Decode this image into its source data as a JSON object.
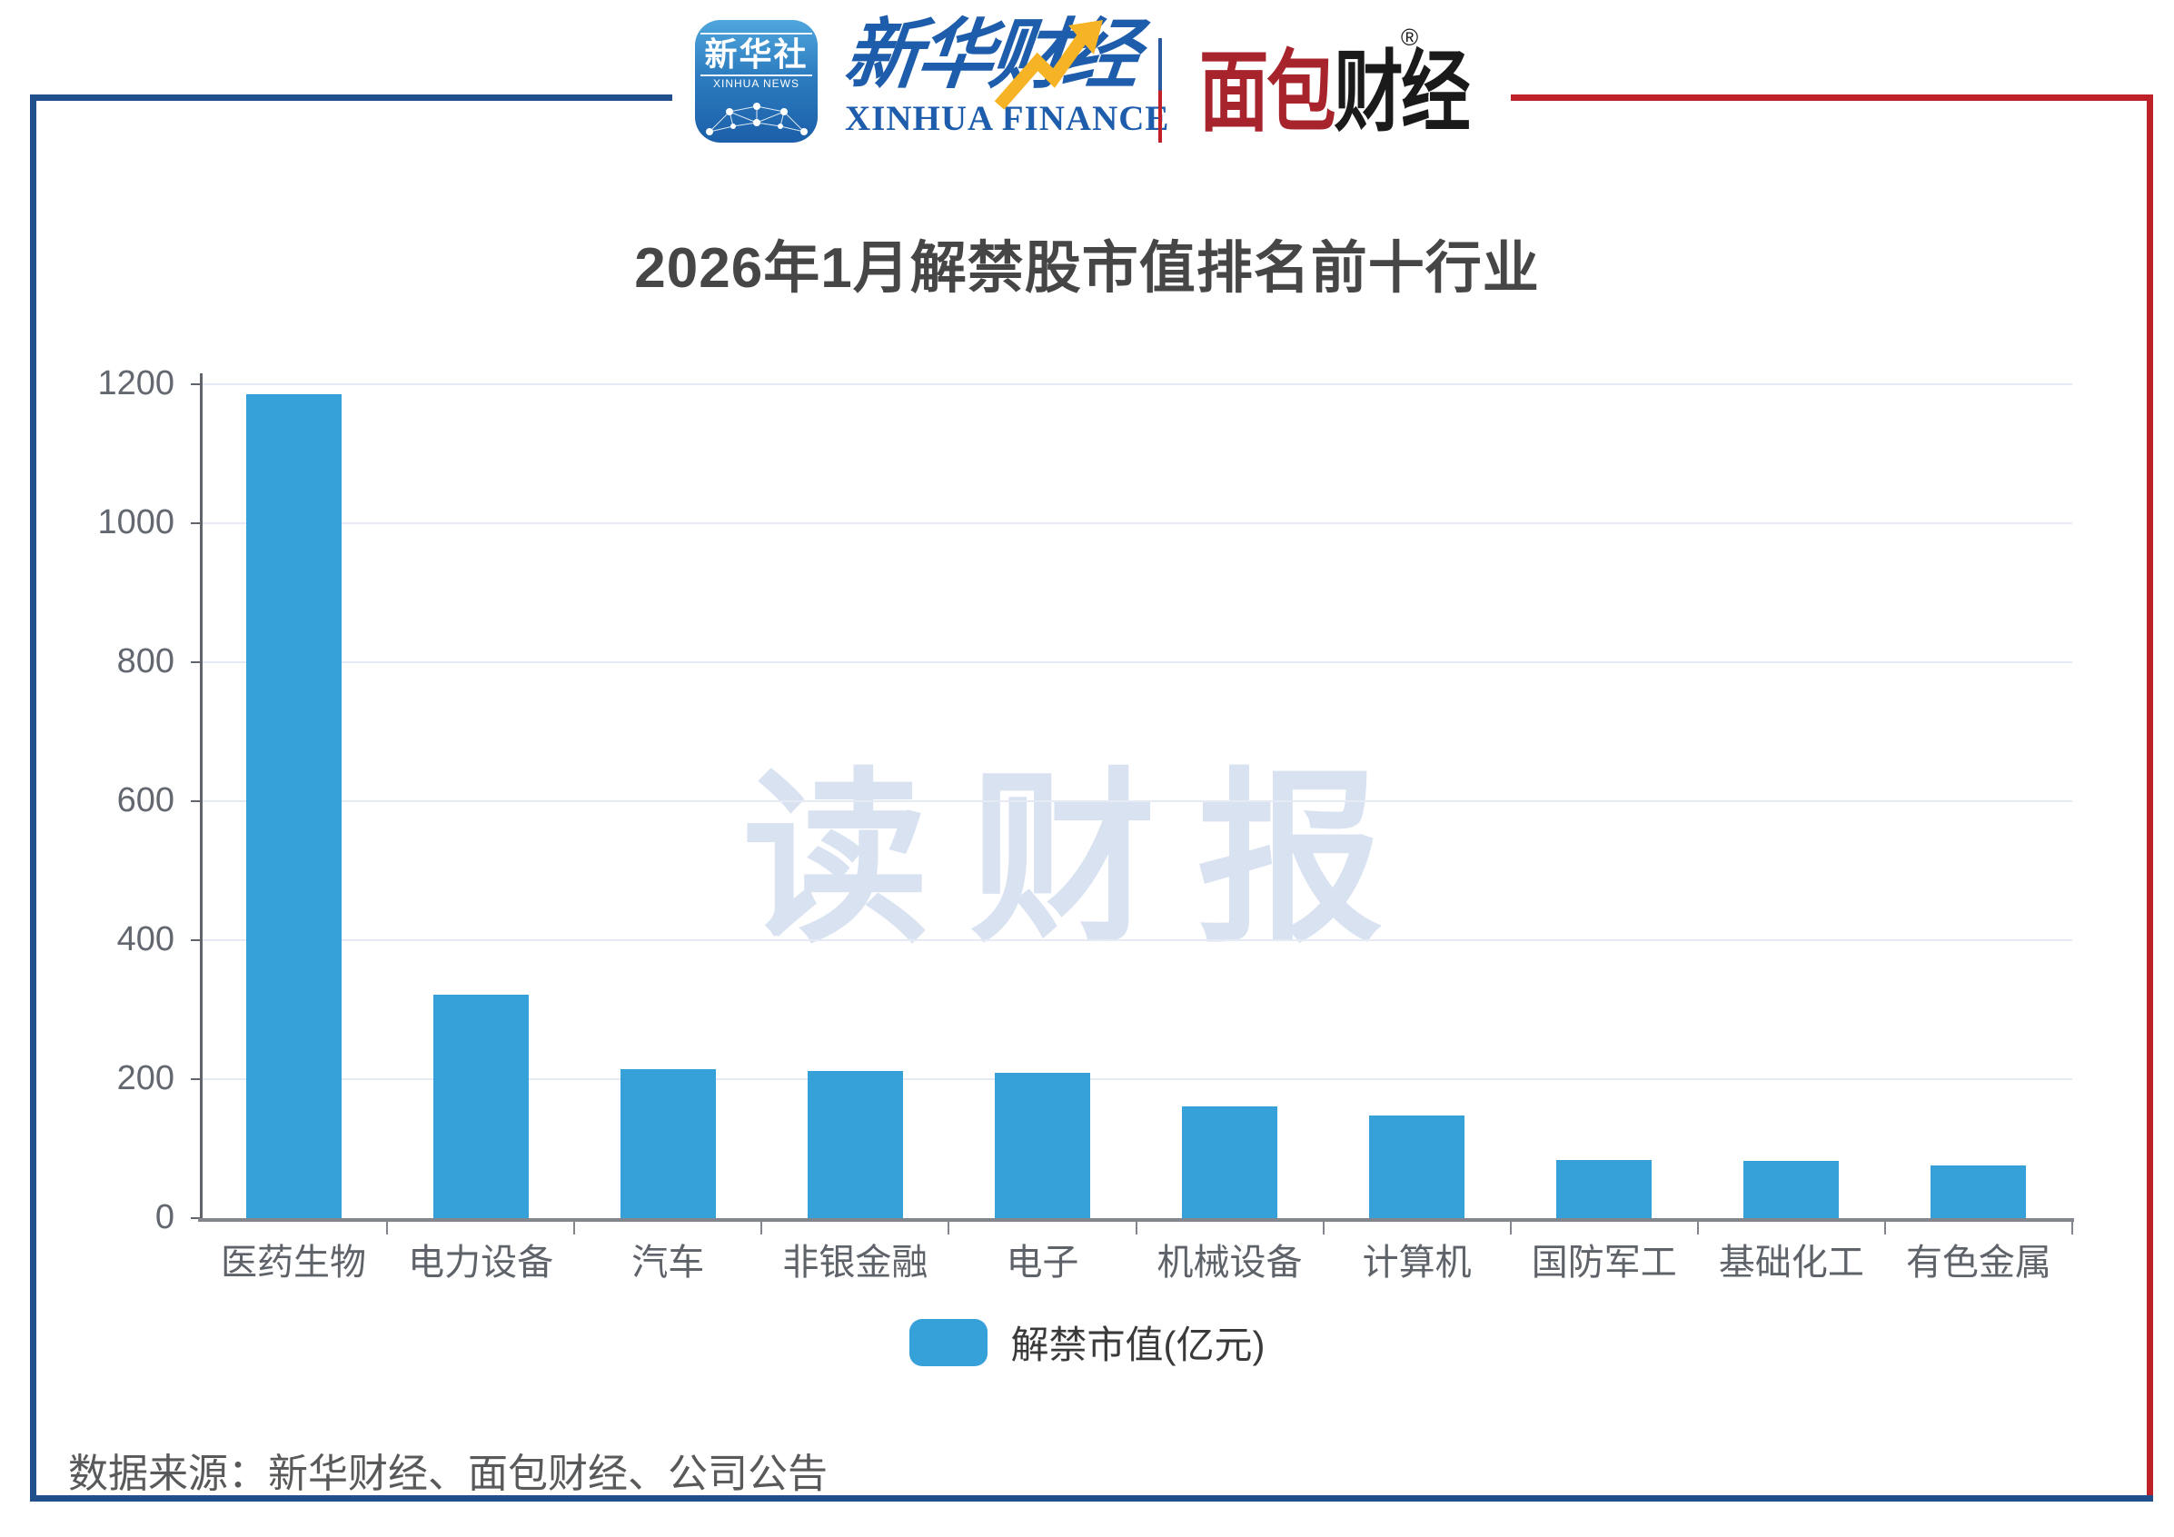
{
  "header": {
    "xinhua_icon": {
      "cn": "新华社",
      "en": "XINHUA NEWS"
    },
    "xinhua_finance": {
      "cn": "新华财经",
      "en": "XINHUA FINANCE"
    },
    "mianbao": {
      "cn_red": "面包",
      "cn_black": "财经",
      "reg_mark": "®"
    }
  },
  "chart_data": {
    "type": "bar",
    "title": "2026年1月解禁股市值排名前十行业",
    "categories": [
      "医药生物",
      "电力设备",
      "汽车",
      "非银金融",
      "电子",
      "机械设备",
      "计算机",
      "国防军工",
      "基础化工",
      "有色金属"
    ],
    "values": [
      1186,
      322,
      215,
      212,
      209,
      161,
      148,
      84,
      83,
      76
    ],
    "series_name": "解禁市值(亿元)",
    "ylim": [
      0,
      1200
    ],
    "yticks": [
      0,
      200,
      400,
      600,
      800,
      1000,
      1200
    ],
    "grid": true,
    "legend_position": "bottom",
    "bar_color": "#36A0D9",
    "watermark": "读财报"
  },
  "legend": {
    "label": "解禁市值(亿元)"
  },
  "footer": {
    "source": "数据来源：新华财经、面包财经、公司公告"
  },
  "colors": {
    "frame_blue": "#214F8B",
    "frame_red": "#BE2128",
    "bar_blue": "#36A0D9",
    "title_gray": "#464646",
    "axis_label_gray": "#5E6269",
    "gridline": "#E5EAF4",
    "watermark": "#D9E2F1"
  }
}
